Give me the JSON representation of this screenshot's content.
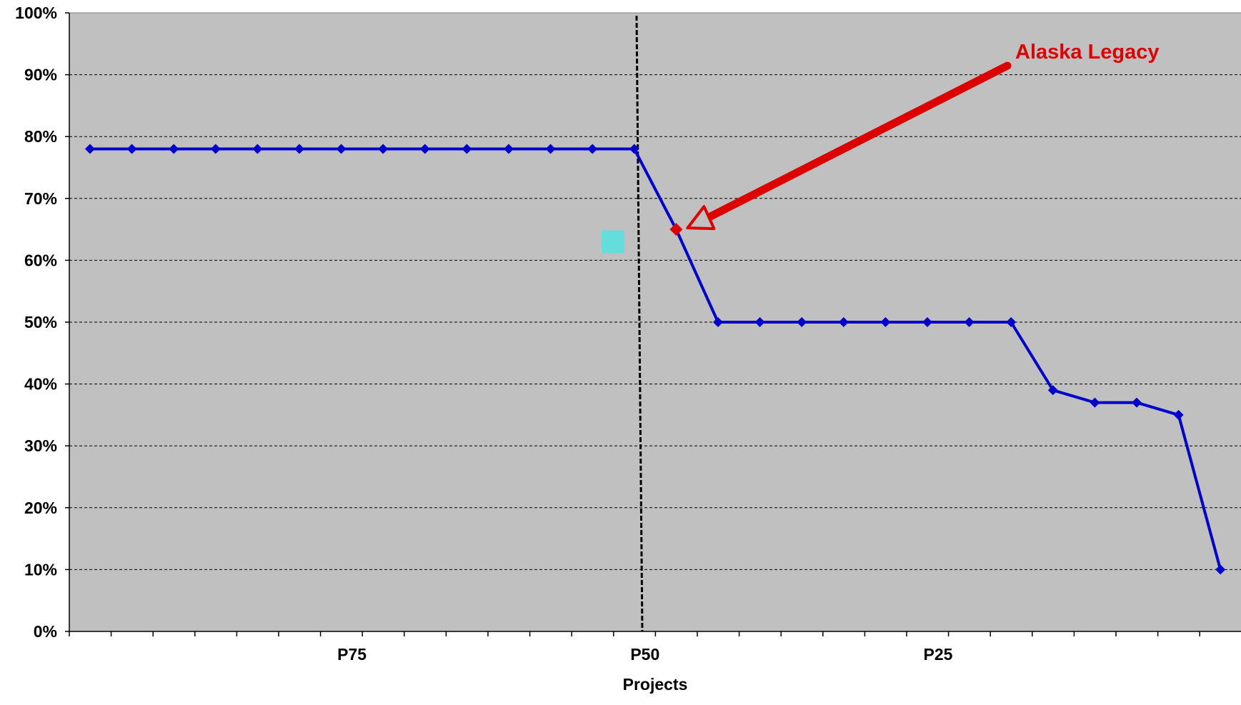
{
  "chart_data": {
    "type": "line",
    "title": "",
    "xlabel": "Projects",
    "ylabel": "",
    "ylim": [
      0,
      100
    ],
    "y_unit": "%",
    "y_ticks": [
      "0%",
      "10%",
      "20%",
      "30%",
      "40%",
      "50%",
      "60%",
      "70%",
      "80%",
      "90%",
      "100%"
    ],
    "x_tick_labels": [
      {
        "label": "P75",
        "index": 6
      },
      {
        "label": "P50",
        "index": 13
      },
      {
        "label": "P25",
        "index": 20
      }
    ],
    "grid": true,
    "series": [
      {
        "values": [
          78,
          78,
          78,
          78,
          78,
          78,
          78,
          78,
          78,
          78,
          78,
          78,
          78,
          78,
          65,
          50,
          50,
          50,
          50,
          50,
          50,
          50,
          50,
          39,
          37,
          37,
          35,
          10
        ],
        "color": "#0000cc",
        "highlight": {
          "index": 14,
          "value": 65,
          "color": "#dd0000"
        }
      }
    ],
    "reference_line": {
      "label": "P50",
      "style": "dashed",
      "color": "#000000"
    },
    "annotation": {
      "text": "Alaska Legacy",
      "color": "#dd0000",
      "points_to_index": 14
    },
    "marker_square": {
      "value": 63,
      "color": "#66dddd"
    },
    "colors": {
      "plot_background": "#c0c0c0",
      "axis": "#000000",
      "grid": "#000000"
    }
  }
}
